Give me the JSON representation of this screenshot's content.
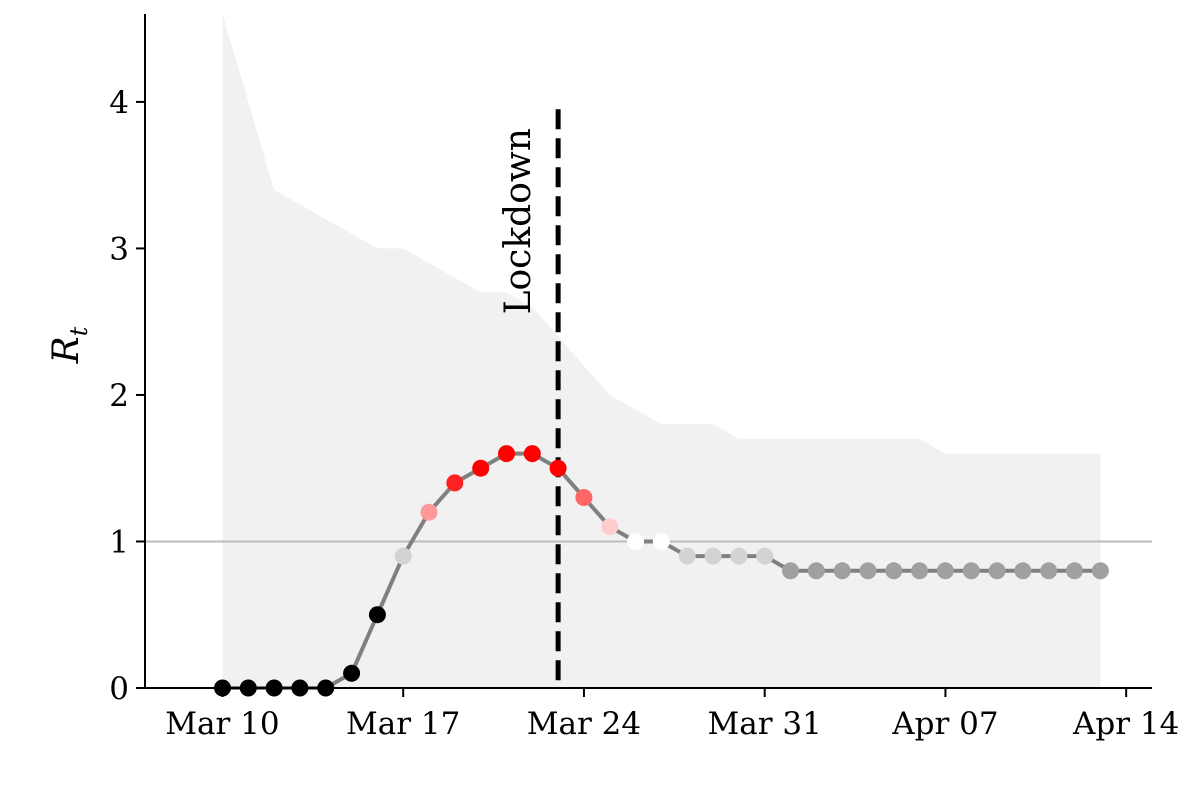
{
  "chart_data": {
    "type": "line",
    "ylabel_main": "R",
    "ylabel_sub": "t",
    "ylim": [
      0,
      4.6
    ],
    "yticks": [
      0,
      1,
      2,
      3,
      4
    ],
    "xlim": [
      "2020-03-07",
      "2020-04-15"
    ],
    "xticks": [
      {
        "date": "2020-03-10",
        "label": "Mar 10"
      },
      {
        "date": "2020-03-17",
        "label": "Mar 17"
      },
      {
        "date": "2020-03-24",
        "label": "Mar 24"
      },
      {
        "date": "2020-03-31",
        "label": "Mar 31"
      },
      {
        "date": "2020-04-07",
        "label": "Apr 07"
      },
      {
        "date": "2020-04-14",
        "label": "Apr 14"
      }
    ],
    "reference_line": {
      "y": 1,
      "color": "#bbbbbb"
    },
    "lockdown": {
      "date": "2020-03-23",
      "label": "Lockdown",
      "color": "#000000"
    },
    "band_color": "#f1f1f1",
    "line_color": "#808080",
    "series": [
      {
        "x": [
          "2020-03-10",
          "2020-03-11",
          "2020-03-12",
          "2020-03-13",
          "2020-03-14",
          "2020-03-15",
          "2020-03-16",
          "2020-03-17",
          "2020-03-18",
          "2020-03-19",
          "2020-03-20",
          "2020-03-21",
          "2020-03-22",
          "2020-03-23",
          "2020-03-24",
          "2020-03-25",
          "2020-03-26",
          "2020-03-27",
          "2020-03-28",
          "2020-03-29",
          "2020-03-30",
          "2020-03-31",
          "2020-04-01",
          "2020-04-02",
          "2020-04-03",
          "2020-04-04",
          "2020-04-05",
          "2020-04-06",
          "2020-04-07",
          "2020-04-08",
          "2020-04-09",
          "2020-04-10",
          "2020-04-11",
          "2020-04-12",
          "2020-04-13"
        ],
        "y": [
          0,
          0,
          0,
          0,
          0,
          0.1,
          0.5,
          0.9,
          1.2,
          1.4,
          1.5,
          1.6,
          1.6,
          1.5,
          1.3,
          1.1,
          1.0,
          1.0,
          0.9,
          0.9,
          0.9,
          0.9,
          0.8,
          0.8,
          0.8,
          0.8,
          0.8,
          0.8,
          0.8,
          0.8,
          0.8,
          0.8,
          0.8,
          0.8,
          0.8
        ],
        "upper": [
          4.6,
          4.0,
          3.4,
          3.3,
          3.2,
          3.1,
          3.0,
          3.0,
          2.9,
          2.8,
          2.7,
          2.7,
          2.6,
          2.4,
          2.2,
          2.0,
          1.9,
          1.8,
          1.8,
          1.8,
          1.7,
          1.7,
          1.7,
          1.7,
          1.7,
          1.7,
          1.7,
          1.7,
          1.6,
          1.6,
          1.6,
          1.6,
          1.6,
          1.6,
          1.6
        ],
        "lower": [
          0,
          0,
          0,
          0,
          0,
          0,
          0,
          0,
          0,
          0,
          0,
          0,
          0,
          0,
          0,
          0,
          0,
          0,
          0,
          0,
          0,
          0,
          0,
          0,
          0,
          0,
          0,
          0,
          0,
          0,
          0,
          0,
          0,
          0,
          0
        ],
        "point_colors": [
          "#000000",
          "#000000",
          "#000000",
          "#000000",
          "#000000",
          "#000000",
          "#000000",
          "#d3d3d3",
          "#ff9999",
          "#ff2222",
          "#ff0000",
          "#ff0000",
          "#ff0000",
          "#ff0000",
          "#ff6666",
          "#ffcccc",
          "#ffffff",
          "#ffffff",
          "#d3d3d3",
          "#d3d3d3",
          "#d3d3d3",
          "#d3d3d3",
          "#a0a0a0",
          "#a0a0a0",
          "#a0a0a0",
          "#a0a0a0",
          "#a0a0a0",
          "#a0a0a0",
          "#a0a0a0",
          "#a0a0a0",
          "#a0a0a0",
          "#a0a0a0",
          "#a0a0a0",
          "#a0a0a0",
          "#a0a0a0"
        ]
      }
    ]
  }
}
